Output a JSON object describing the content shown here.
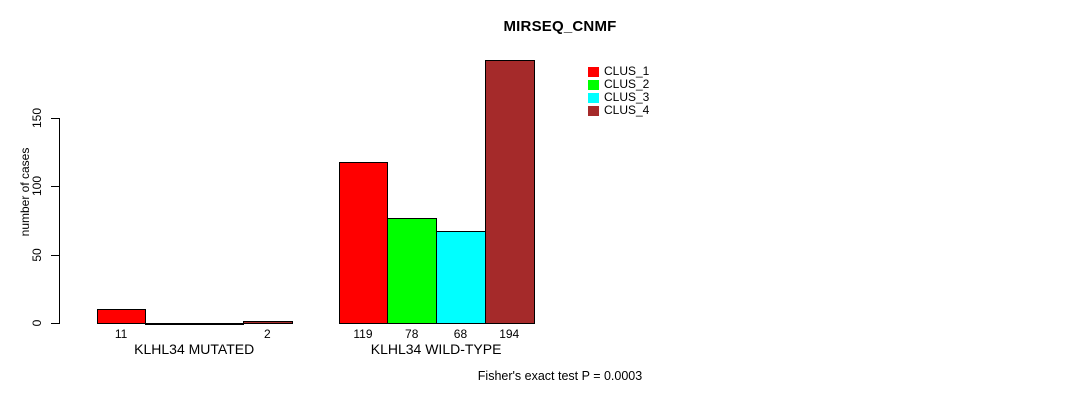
{
  "chart_data": {
    "type": "bar",
    "title": "MIRSEQ_CNMF",
    "ylabel": "number of cases",
    "annotation": "Fisher's exact test P = 0.0003",
    "categories": [
      "KLHL34 MUTATED",
      "KLHL34 WILD-TYPE"
    ],
    "series": [
      {
        "name": "CLUS_1",
        "color": "#ff0000",
        "values": [
          11,
          119
        ]
      },
      {
        "name": "CLUS_2",
        "color": "#00ff00",
        "values": [
          0,
          78
        ]
      },
      {
        "name": "CLUS_3",
        "color": "#00ffff",
        "values": [
          0,
          68
        ]
      },
      {
        "name": "CLUS_4",
        "color": "#a52a2a",
        "values": [
          2,
          194
        ]
      }
    ],
    "yticks": [
      0,
      50,
      100,
      150
    ],
    "ylim": [
      0,
      195
    ],
    "grid": false,
    "legend_position": "top-right",
    "background_color": "#ffffff",
    "axis_color": "#000000",
    "bar_value_labels": [
      [
        "11",
        null,
        null,
        "2"
      ],
      [
        "119",
        "78",
        "68",
        "194"
      ]
    ]
  }
}
